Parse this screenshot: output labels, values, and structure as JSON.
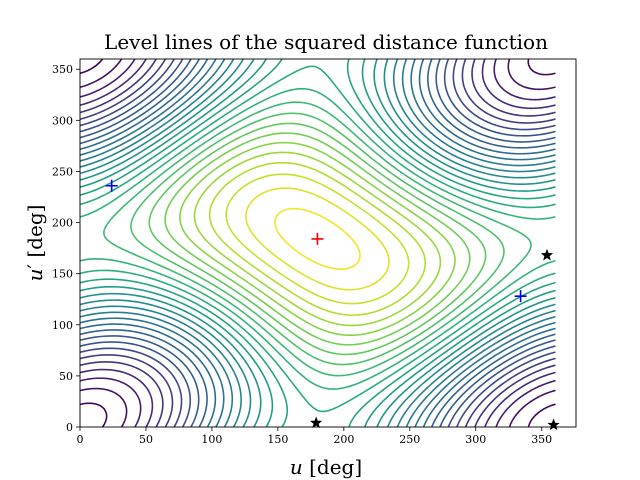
{
  "chart_data": {
    "type": "contour",
    "title": "Level lines of the squared distance function",
    "xlabel": {
      "var": "u",
      "prime": "",
      "unit": " [deg]"
    },
    "ylabel": {
      "var": "u",
      "prime": "′",
      "unit": " [deg]"
    },
    "xlim": [
      0,
      376
    ],
    "ylim": [
      0,
      360
    ],
    "xticks": [
      0,
      50,
      100,
      150,
      200,
      250,
      300,
      350
    ],
    "yticks": [
      0,
      50,
      100,
      150,
      200,
      250,
      300,
      350
    ],
    "grid": false,
    "colormap": "viridis",
    "center_max": {
      "u": 180,
      "u_prime": 184
    },
    "markers": [
      {
        "kind": "plus",
        "color": "#ff0000",
        "u": 180,
        "u_prime": 184
      },
      {
        "kind": "plus",
        "color": "#0000ff",
        "u": 24,
        "u_prime": 236
      },
      {
        "kind": "plus",
        "color": "#0000ff",
        "u": 334,
        "u_prime": 128
      },
      {
        "kind": "star",
        "color": "#000000",
        "u": 179,
        "u_prime": 4
      },
      {
        "kind": "star",
        "color": "#000000",
        "u": 354,
        "u_prime": 168
      },
      {
        "kind": "star",
        "color": "#000000",
        "u": 359,
        "u_prime": 2
      }
    ]
  }
}
